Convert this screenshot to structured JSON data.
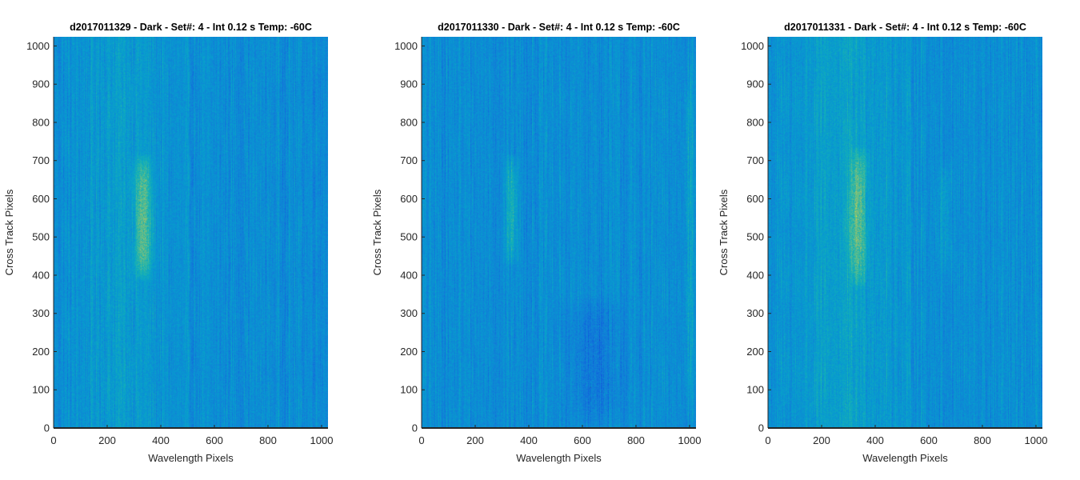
{
  "chart_data": [
    {
      "type": "heatmap",
      "title": "d2017011329 - Dark - Set#: 4 - Int 0.12 s Temp: -60C",
      "xlabel": "Wavelength Pixels",
      "ylabel": "Cross Track Pixels",
      "xlim": [
        0,
        1024
      ],
      "ylim": [
        0,
        1024
      ],
      "xticks": [
        0,
        200,
        400,
        600,
        800,
        1000
      ],
      "yticks": [
        0,
        100,
        200,
        300,
        400,
        500,
        600,
        700,
        800,
        900,
        1000
      ],
      "colormap": "parula",
      "features": [
        {
          "kind": "warm_band",
          "x_center": 335,
          "x_width": 60,
          "y_range": [
            380,
            720
          ],
          "strength": 0.9
        },
        {
          "kind": "warm_haze",
          "x_center": 250,
          "x_width": 300,
          "y_range": [
            0,
            1024
          ],
          "strength": 0.25
        }
      ]
    },
    {
      "type": "heatmap",
      "title": "d2017011330 - Dark - Set#: 4 - Int 0.12 s Temp: -60C",
      "xlabel": "Wavelength Pixels",
      "ylabel": "Cross Track Pixels",
      "xlim": [
        0,
        1024
      ],
      "ylim": [
        0,
        1024
      ],
      "xticks": [
        0,
        200,
        400,
        600,
        800,
        1000
      ],
      "yticks": [
        0,
        100,
        200,
        300,
        400,
        500,
        600,
        700,
        800,
        900,
        1000
      ],
      "colormap": "parula",
      "features": [
        {
          "kind": "warm_band",
          "x_center": 335,
          "x_width": 45,
          "y_range": [
            420,
            720
          ],
          "strength": 0.55
        },
        {
          "kind": "warm_band",
          "x_center": 1000,
          "x_width": 40,
          "y_range": [
            0,
            1024
          ],
          "strength": 0.35
        },
        {
          "kind": "cool_patch",
          "x_center": 650,
          "x_width": 200,
          "y_range": [
            0,
            350
          ],
          "strength": 0.3
        }
      ]
    },
    {
      "type": "heatmap",
      "title": "d2017011331 - Dark - Set#: 4 - Int 0.12 s Temp: -60C",
      "xlabel": "Wavelength Pixels",
      "ylabel": "Cross Track Pixels",
      "xlim": [
        0,
        1024
      ],
      "ylim": [
        0,
        1024
      ],
      "xticks": [
        0,
        200,
        400,
        600,
        800,
        1000
      ],
      "yticks": [
        0,
        100,
        200,
        300,
        400,
        500,
        600,
        700,
        800,
        900,
        1000
      ],
      "colormap": "parula",
      "features": [
        {
          "kind": "warm_band",
          "x_center": 335,
          "x_width": 60,
          "y_range": [
            360,
            740
          ],
          "strength": 0.85
        },
        {
          "kind": "warm_haze",
          "x_center": 300,
          "x_width": 450,
          "y_range": [
            0,
            1024
          ],
          "strength": 0.3
        },
        {
          "kind": "warm_band",
          "x_center": 660,
          "x_width": 50,
          "y_range": [
            400,
            700
          ],
          "strength": 0.25
        }
      ]
    }
  ]
}
